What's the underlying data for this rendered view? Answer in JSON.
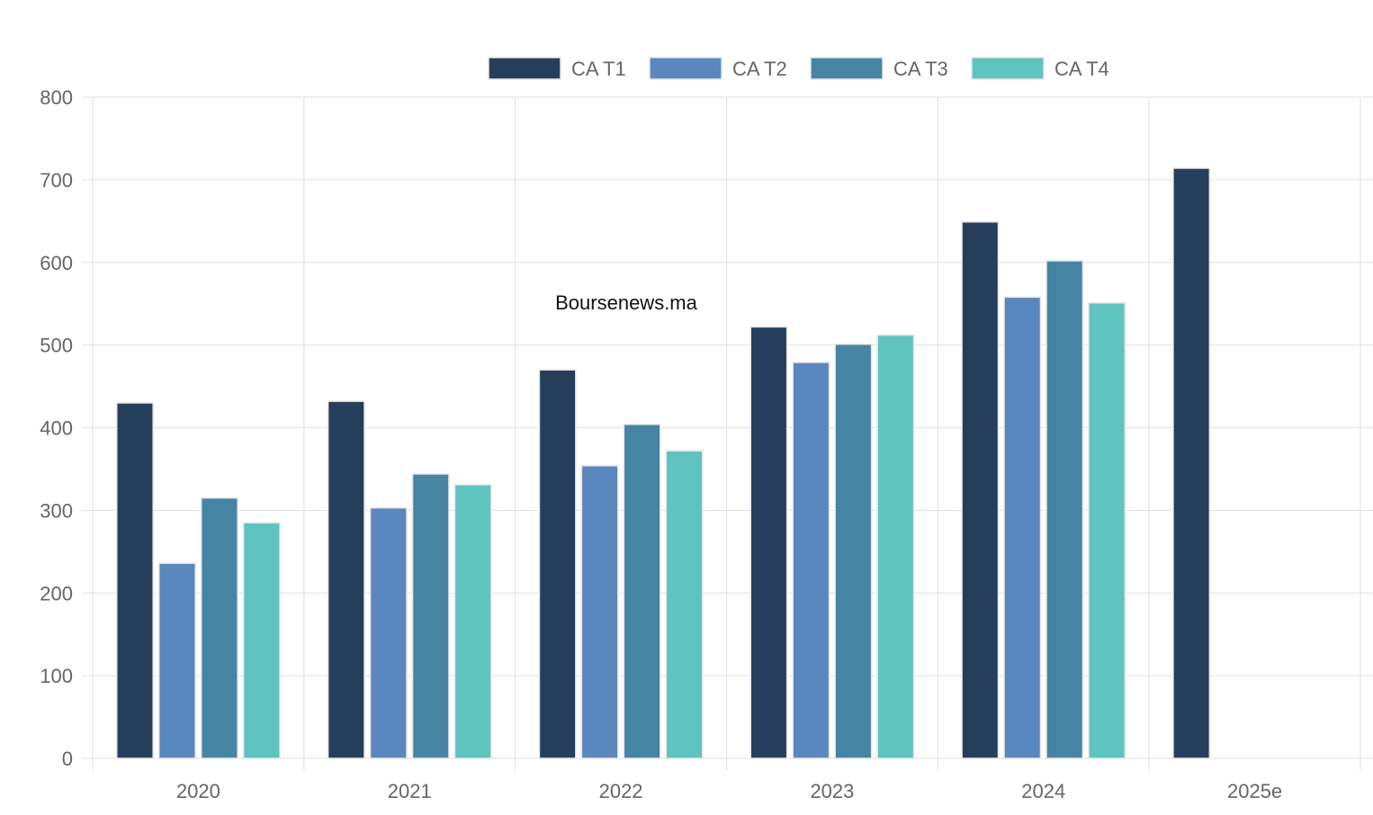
{
  "chart_data": {
    "type": "bar",
    "categories": [
      "2020",
      "2021",
      "2022",
      "2023",
      "2024",
      "2025e"
    ],
    "series": [
      {
        "name": "CA T1",
        "color": "#253e5b",
        "values": [
          430,
          432,
          470,
          522,
          649,
          714
        ]
      },
      {
        "name": "CA T2",
        "color": "#5a87bd",
        "values": [
          236,
          303,
          354,
          479,
          558,
          null
        ]
      },
      {
        "name": "CA T3",
        "color": "#4584a3",
        "values": [
          315,
          344,
          404,
          501,
          602,
          null
        ]
      },
      {
        "name": "CA T4",
        "color": "#5fc3bf",
        "values": [
          285,
          331,
          372,
          512,
          551,
          null
        ]
      }
    ],
    "y_ticks": [
      "0",
      "100",
      "200",
      "300",
      "400",
      "500",
      "600",
      "700",
      "800"
    ],
    "ylim": [
      0,
      800
    ],
    "grid": true,
    "legend_position": "top",
    "watermark": "Boursenews.ma"
  }
}
